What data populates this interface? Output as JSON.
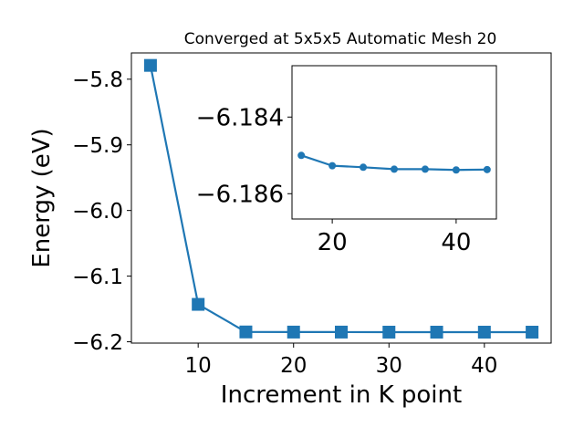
{
  "chart_data": [
    {
      "type": "line",
      "title": "Converged at 5x5x5 Automatic Mesh 20",
      "xlabel": "Increment in K point",
      "ylabel": "Energy (eV)",
      "xlim": [
        3,
        47
      ],
      "ylim": [
        -6.202,
        -5.76
      ],
      "xticks": [
        10,
        20,
        30,
        40
      ],
      "yticks": [
        -5.8,
        -5.9,
        -6.0,
        -6.1,
        -6.2
      ],
      "xtick_labels": [
        "10",
        "20",
        "30",
        "40"
      ],
      "ytick_labels": [
        "−5.8",
        "−5.9",
        "−6.0",
        "−6.1",
        "−6.2"
      ],
      "marker": "square",
      "color": "#1f77b4",
      "series": [
        {
          "x": [
            5,
            10,
            15,
            20,
            25,
            30,
            35,
            40,
            45
          ],
          "values": [
            -5.779,
            -6.143,
            -6.185,
            -6.1852,
            -6.1852,
            -6.1853,
            -6.1853,
            -6.1853,
            -6.1853
          ]
        }
      ]
    },
    {
      "type": "line",
      "title": "",
      "xlabel": "",
      "ylabel": "",
      "xlim": [
        13.5,
        46.5
      ],
      "ylim": [
        -6.18666,
        -6.18266
      ],
      "xticks": [
        20,
        40
      ],
      "yticks": [
        -6.186,
        -6.184
      ],
      "xtick_labels": [
        "20",
        "40"
      ],
      "ytick_labels": [
        "−6.186",
        "−6.184"
      ],
      "marker": "circle",
      "color": "#1f77b4",
      "series": [
        {
          "x": [
            15,
            20,
            25,
            30,
            35,
            40,
            45
          ],
          "values": [
            -6.185,
            -6.18527,
            -6.18531,
            -6.18536,
            -6.18536,
            -6.18538,
            -6.18537
          ]
        }
      ]
    }
  ]
}
